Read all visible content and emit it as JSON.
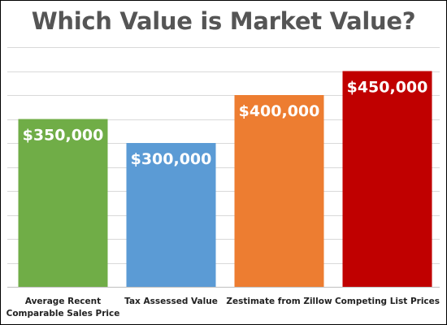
{
  "chart_data": {
    "type": "bar",
    "title": "Which Value is Market Value?",
    "xlabel": "",
    "ylabel": "",
    "ylim": [
      0,
      500000
    ],
    "grid": true,
    "legend": "none",
    "categories": [
      "Average Recent Comparable Sales Price",
      "Tax Assessed Value",
      "Zestimate from Zillow",
      "Competing List Prices"
    ],
    "category_lines": [
      [
        "Average Recent",
        "Comparable Sales Price"
      ],
      [
        "Tax Assessed Value"
      ],
      [
        "Zestimate from Zillow"
      ],
      [
        "Competing List Prices"
      ]
    ],
    "values": [
      350000,
      300000,
      400000,
      450000
    ],
    "data_labels": [
      "$350,000",
      "$300,000",
      "$400,000",
      "$450,000"
    ],
    "colors": [
      "#70ad47",
      "#5b9bd5",
      "#ed7d31",
      "#c00000"
    ],
    "gridline_color": "#d9d9d9",
    "axis_color": "#bfbfbf"
  }
}
